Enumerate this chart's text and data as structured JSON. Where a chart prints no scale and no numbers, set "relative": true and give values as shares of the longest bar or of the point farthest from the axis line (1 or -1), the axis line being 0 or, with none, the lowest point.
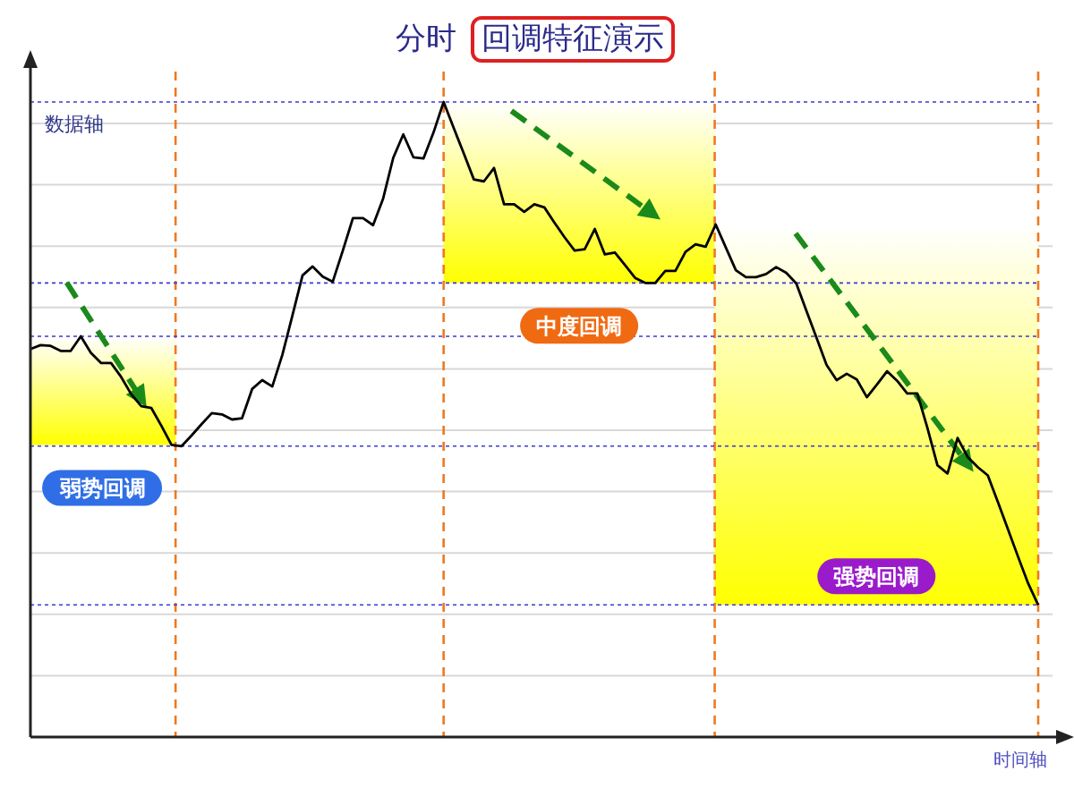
{
  "chart_data": {
    "type": "line",
    "relative": true,
    "title": "分时",
    "subtitle": "回调特征演示",
    "xlabel": "时间轴",
    "ylabel": "数据轴",
    "grid": true,
    "categories": [
      null,
      null,
      null,
      null,
      null,
      null,
      null,
      null,
      null,
      null,
      null,
      null,
      null,
      null,
      null,
      null,
      null,
      null,
      null,
      null,
      null,
      null,
      null,
      null,
      null,
      null,
      null,
      null,
      null,
      null,
      null,
      null,
      null,
      null,
      null,
      null,
      null,
      null,
      null,
      null,
      null,
      null,
      null,
      null,
      null,
      null,
      null,
      null,
      null,
      null,
      null,
      null,
      null,
      null,
      null,
      null,
      null,
      null,
      null,
      null,
      null,
      null,
      null,
      null,
      null,
      null,
      null,
      null,
      null,
      null,
      null,
      null,
      null,
      null,
      null,
      null,
      null,
      null,
      null,
      null,
      null,
      null,
      null,
      null,
      null,
      null,
      null,
      null,
      null,
      null,
      null,
      null,
      null,
      null,
      null,
      null,
      null,
      null,
      null,
      null,
      null
    ],
    "series": [
      {
        "color": "#000000",
        "values": [
          0.611,
          0.617,
          0.616,
          0.608,
          0.608,
          0.631,
          0.605,
          0.589,
          0.589,
          0.567,
          0.54,
          0.521,
          0.518,
          0.49,
          0.46,
          0.458,
          0.475,
          0.493,
          0.51,
          0.508,
          0.5,
          0.502,
          0.548,
          0.562,
          0.552,
          0.602,
          0.664,
          0.727,
          0.741,
          0.725,
          0.717,
          0.766,
          0.817,
          0.817,
          0.806,
          0.848,
          0.912,
          0.949,
          0.913,
          0.911,
          0.952,
          1,
          0.959,
          0.919,
          0.878,
          0.875,
          0.896,
          0.839,
          0.839,
          0.827,
          0.839,
          0.834,
          0.81,
          0.787,
          0.766,
          0.768,
          0.8,
          0.76,
          0.763,
          0.743,
          0.723,
          0.715,
          0.715,
          0.734,
          0.734,
          0.764,
          0.776,
          0.772,
          0.807,
          0.771,
          0.735,
          0.724,
          0.724,
          0.729,
          0.74,
          0.731,
          0.714,
          0.671,
          0.629,
          0.586,
          0.562,
          0.572,
          0.563,
          0.535,
          0.555,
          0.576,
          0.561,
          0.541,
          0.541,
          0.487,
          0.428,
          0.415,
          0.471,
          0.441,
          0.425,
          0.412,
          0.37,
          0.327,
          0.284,
          0.242,
          0.208
        ]
      }
    ],
    "annotations": [
      "弱势回调",
      "中度回调",
      "强势回调"
    ],
    "ref_lines": [
      {
        "axis": "y",
        "value": 1,
        "color": "#3a3ad0",
        "line_style": "dotted"
      },
      {
        "axis": "y",
        "value": 0.715,
        "color": "#3a3ad0",
        "line_style": "dotted"
      },
      {
        "axis": "y",
        "value": 0.631,
        "color": "#3a3ad0",
        "line_style": "dotted"
      },
      {
        "axis": "y",
        "value": 0.458,
        "color": "#3a3ad0",
        "line_style": "dotted"
      },
      {
        "axis": "y",
        "value": 0.208,
        "color": "#3a3ad0",
        "line_style": "dotted"
      }
    ]
  }
}
